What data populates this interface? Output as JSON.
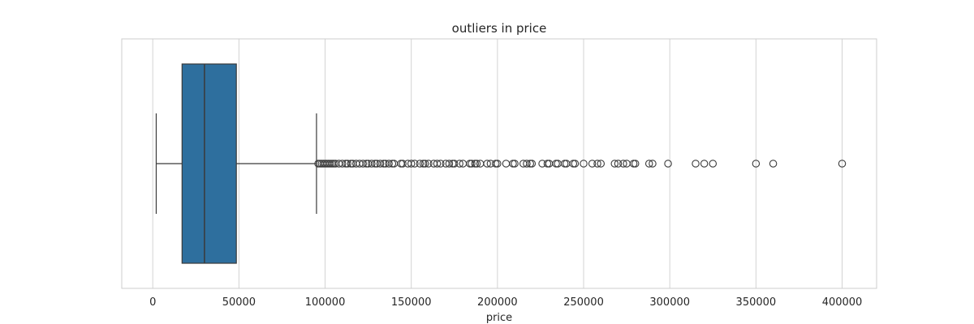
{
  "chart_data": {
    "type": "box",
    "orientation": "horizontal",
    "title": "outliers in price",
    "xlabel": "price",
    "ylabel": "",
    "xlim": [
      -18000,
      420000
    ],
    "xticks": [
      0,
      50000,
      100000,
      150000,
      200000,
      250000,
      300000,
      350000,
      400000
    ],
    "xtick_labels": [
      "0",
      "50000",
      "100000",
      "150000",
      "200000",
      "250000",
      "300000",
      "350000",
      "400000"
    ],
    "grid": true,
    "box": {
      "whisker_low": 2000,
      "q1": 17000,
      "median": 30000,
      "q3": 48500,
      "whisker_high": 95000,
      "fill_color": "#2e6f9e",
      "line_color": "#3a3a3a"
    },
    "outliers": [
      96000,
      97000,
      98000,
      99000,
      100000,
      101000,
      102000,
      103000,
      104000,
      105000,
      106000,
      108000,
      110000,
      112000,
      113000,
      115000,
      116000,
      118000,
      120000,
      122000,
      124000,
      125000,
      127000,
      129000,
      130000,
      132000,
      134000,
      135000,
      137000,
      139000,
      140000,
      144000,
      145000,
      148000,
      150000,
      152000,
      155000,
      157000,
      158000,
      160000,
      163000,
      165000,
      167000,
      170000,
      172000,
      174000,
      175000,
      178000,
      180000,
      184000,
      185000,
      187000,
      188000,
      190000,
      194000,
      196000,
      199000,
      200000,
      205000,
      209000,
      210000,
      215000,
      217000,
      219000,
      220000,
      226000,
      229000,
      230000,
      234000,
      235000,
      239000,
      240000,
      244000,
      245000,
      250000,
      255000,
      258000,
      260000,
      268000,
      270000,
      273000,
      275000,
      279000,
      280000,
      288000,
      290000,
      299000,
      315000,
      320000,
      325000,
      350000,
      360000,
      400000
    ],
    "colors": {
      "grid": "#d3d3d3",
      "frame": "#cccccc",
      "outlier_stroke": "#3a3a3a"
    }
  }
}
